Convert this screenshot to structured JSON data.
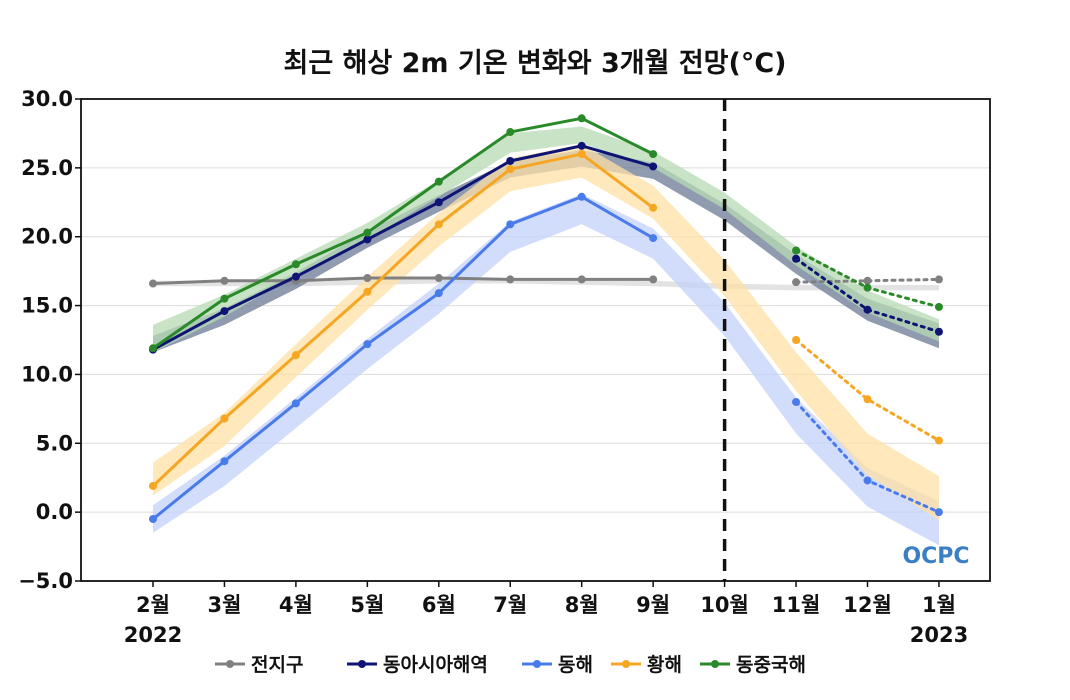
{
  "chart_data": {
    "type": "line",
    "title": "최근 해상 2m 기온 변화와 3개월 전망(°C)",
    "xlabel": "",
    "ylabel": "",
    "ylim": [
      -5.0,
      30.0
    ],
    "yticks": [
      "30.0",
      "25.0",
      "20.0",
      "15.0",
      "10.0",
      "5.0",
      "0.0",
      "−5.0"
    ],
    "ytick_values": [
      30,
      25,
      20,
      15,
      10,
      5,
      0,
      -5
    ],
    "categories": [
      "2월",
      "3월",
      "4월",
      "5월",
      "6월",
      "7월",
      "8월",
      "9월",
      "10월",
      "11월",
      "12월",
      "1월"
    ],
    "year_labels": {
      "start": "2022",
      "end": "2023"
    },
    "grid": true,
    "legend_position": "bottom",
    "divider_category": "10월",
    "logo_text": "OCPC",
    "series": [
      {
        "name": "전지구",
        "color": "#808080",
        "band_color": "#d9d9d9",
        "observed": [
          16.6,
          16.8,
          16.8,
          17.0,
          17.0,
          16.9,
          16.9,
          16.9,
          null,
          null,
          null,
          null
        ],
        "forecast": [
          null,
          null,
          null,
          null,
          null,
          null,
          null,
          null,
          null,
          16.7,
          16.8,
          16.9
        ],
        "band_center": [
          16.6,
          16.6,
          16.6,
          16.7,
          16.8,
          16.8,
          16.7,
          16.6,
          16.4,
          16.3,
          16.3,
          16.3
        ],
        "band_halfwidth": [
          0.2,
          0.2,
          0.2,
          0.2,
          0.2,
          0.2,
          0.2,
          0.2,
          0.2,
          0.2,
          0.2,
          0.2
        ]
      },
      {
        "name": "동아시아해역",
        "color": "#0d1473",
        "band_color": "#6b7a96",
        "observed": [
          11.8,
          14.6,
          17.1,
          19.8,
          22.5,
          25.5,
          26.6,
          25.1,
          null,
          null,
          null,
          null
        ],
        "forecast": [
          null,
          null,
          null,
          null,
          null,
          null,
          null,
          null,
          null,
          18.4,
          14.7,
          13.1
        ],
        "band_center": [
          12.2,
          14.2,
          16.8,
          19.8,
          22.4,
          24.9,
          25.7,
          24.8,
          21.8,
          18.0,
          14.7,
          12.8
        ],
        "band_halfwidth": [
          0.6,
          0.6,
          0.6,
          0.6,
          0.6,
          0.6,
          0.6,
          0.6,
          0.6,
          0.7,
          0.8,
          0.9
        ]
      },
      {
        "name": "동해",
        "color": "#4a7bea",
        "band_color": "#c3d1fb",
        "observed": [
          -0.5,
          3.7,
          7.9,
          12.2,
          15.9,
          20.9,
          22.9,
          19.9,
          null,
          null,
          null,
          null
        ],
        "forecast": [
          null,
          null,
          null,
          null,
          null,
          null,
          null,
          null,
          null,
          8.0,
          2.3,
          0.0
        ],
        "band_center": [
          -0.5,
          3.0,
          7.2,
          11.5,
          15.5,
          20.0,
          22.0,
          19.5,
          14.0,
          7.0,
          1.8,
          -0.8
        ],
        "band_halfwidth": [
          1.0,
          1.1,
          1.1,
          1.1,
          1.1,
          1.1,
          1.1,
          1.1,
          1.2,
          1.3,
          1.4,
          1.6
        ]
      },
      {
        "name": "황해",
        "color": "#f6a623",
        "band_color": "#fde0a6",
        "observed": [
          1.9,
          6.8,
          11.4,
          16.0,
          20.9,
          24.9,
          26.0,
          22.1,
          null,
          null,
          null,
          null
        ],
        "forecast": [
          null,
          null,
          null,
          null,
          null,
          null,
          null,
          null,
          null,
          12.5,
          8.2,
          5.2
        ],
        "band_center": [
          2.4,
          6.0,
          11.0,
          15.9,
          20.5,
          24.5,
          25.5,
          22.5,
          17.0,
          10.2,
          4.2,
          1.0
        ],
        "band_halfwidth": [
          1.2,
          1.2,
          1.2,
          1.2,
          1.2,
          1.2,
          1.2,
          1.2,
          1.3,
          1.4,
          1.5,
          1.6
        ]
      },
      {
        "name": "동중국해",
        "color": "#2a8a2a",
        "band_color": "#b7d9b3",
        "observed": [
          11.9,
          15.5,
          18.0,
          20.3,
          24.0,
          27.6,
          28.6,
          26.0,
          null,
          null,
          null,
          null
        ],
        "forecast": [
          null,
          null,
          null,
          null,
          null,
          null,
          null,
          null,
          null,
          19.0,
          16.3,
          14.9
        ],
        "band_center": [
          12.6,
          15.0,
          17.8,
          20.4,
          23.5,
          26.8,
          27.4,
          25.6,
          22.6,
          18.6,
          15.3,
          13.2
        ],
        "band_halfwidth": [
          1.0,
          0.8,
          0.6,
          0.6,
          0.6,
          0.7,
          0.6,
          0.6,
          0.6,
          0.7,
          0.8,
          0.8
        ]
      }
    ]
  }
}
